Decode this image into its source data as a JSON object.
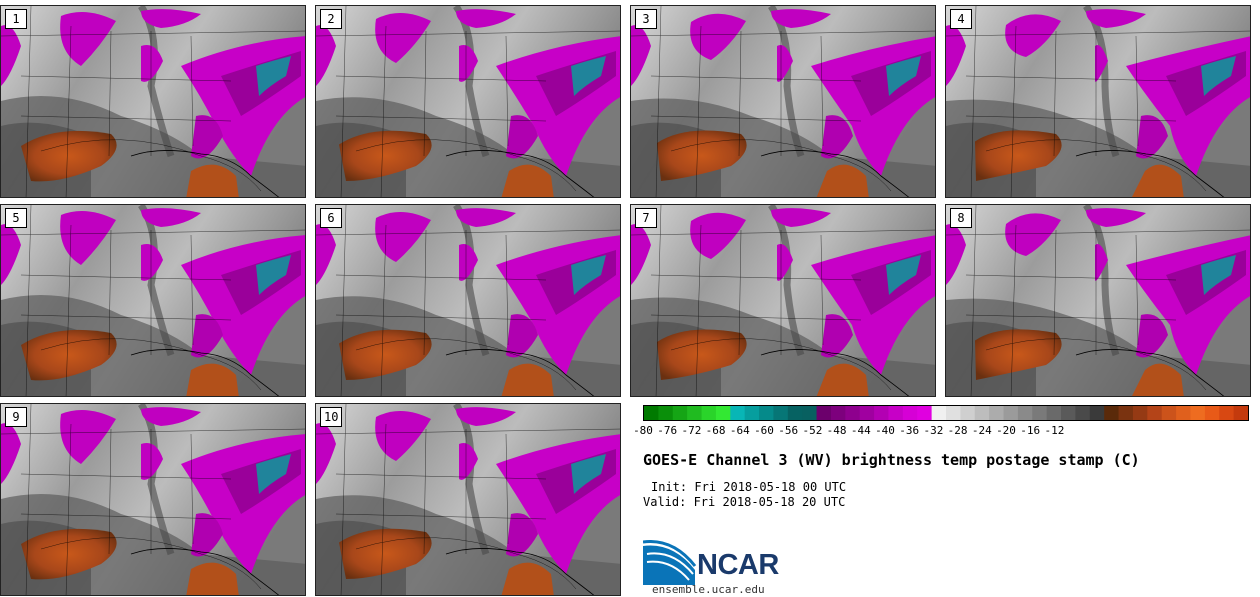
{
  "panels": [
    {
      "label": "1"
    },
    {
      "label": "2"
    },
    {
      "label": "3"
    },
    {
      "label": "4"
    },
    {
      "label": "5"
    },
    {
      "label": "6"
    },
    {
      "label": "7"
    },
    {
      "label": "8"
    },
    {
      "label": "9"
    },
    {
      "label": "10"
    }
  ],
  "colorbar": {
    "ticks": [
      "-80",
      "-76",
      "-72",
      "-68",
      "-64",
      "-60",
      "-56",
      "-52",
      "-48",
      "-44",
      "-40",
      "-36",
      "-32",
      "-28",
      "-24",
      "-20",
      "-16",
      "-12"
    ],
    "colors": [
      "#007a00",
      "#0a8f0a",
      "#15a515",
      "#20bb20",
      "#2ad42a",
      "#33e833",
      "#08b6b6",
      "#069e9e",
      "#058a8a",
      "#067676",
      "#066262",
      "#086060",
      "#6c006c",
      "#7d007d",
      "#8e008e",
      "#a000a0",
      "#b300b3",
      "#c700c7",
      "#d600d6",
      "#e000e0",
      "#f0f0f0",
      "#e0e0e0",
      "#cfcfcf",
      "#bdbdbd",
      "#acacac",
      "#9b9b9b",
      "#8a8a8a",
      "#7a7a7a",
      "#6a6a6a",
      "#5a5a5a",
      "#4a4a4a",
      "#3a3a3a",
      "#5a2a0a",
      "#7a3310",
      "#953a14",
      "#b44418",
      "#cc531b",
      "#e0601d",
      "#ee6c20",
      "#e85a18",
      "#d84812",
      "#c43a0d"
    ]
  },
  "title": "GOES-E Channel 3 (WV) brightness temp postage stamp (C)",
  "init_line": "Init: Fri 2018-05-18 00 UTC",
  "valid_line": "Valid: Fri 2018-05-18 20 UTC",
  "logo": {
    "name": "NCAR",
    "url": "ensemble.ucar.edu"
  }
}
